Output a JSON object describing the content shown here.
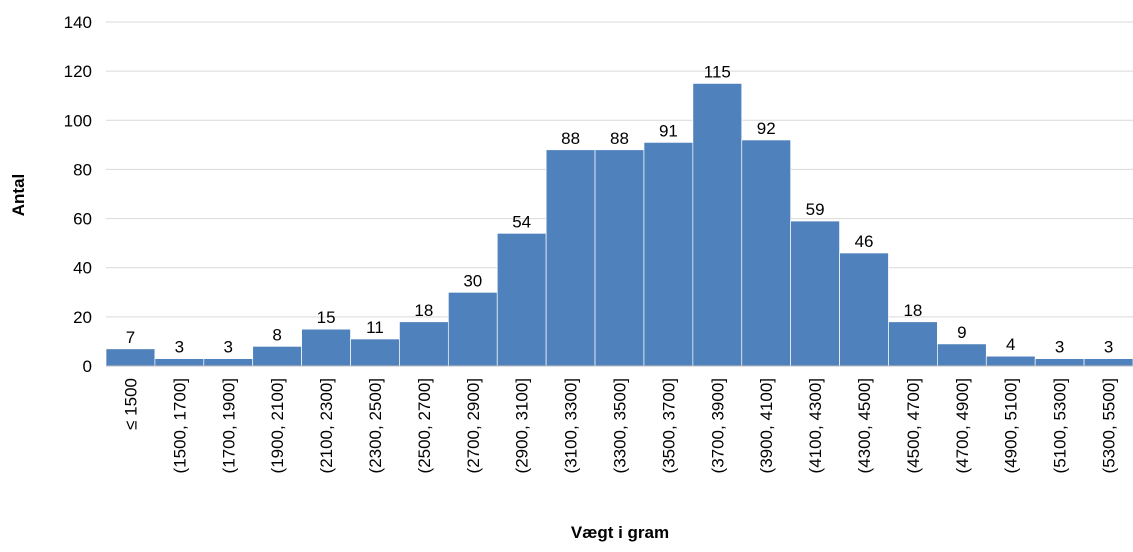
{
  "chart_data": {
    "type": "bar",
    "x_label": "Vægt i gram",
    "y_label": "Antal",
    "categories": [
      "≤ 1500",
      "(1500, 1700]",
      "(1700, 1900]",
      "(1900, 2100]",
      "(2100, 2300]",
      "(2300, 2500]",
      "(2500, 2700]",
      "(2700, 2900]",
      "(2900, 3100]",
      "(3100, 3300]",
      "(3300, 3500]",
      "(3500, 3700]",
      "(3700, 3900]",
      "(3900, 4100]",
      "(4100, 4300]",
      "(4300, 4500]",
      "(4500, 4700]",
      "(4700, 4900]",
      "(4900, 5100]",
      "(5100, 5300]",
      "(5300, 5500]"
    ],
    "values": [
      7,
      3,
      3,
      8,
      15,
      11,
      18,
      30,
      54,
      88,
      88,
      91,
      115,
      92,
      59,
      46,
      18,
      9,
      4,
      3,
      3
    ],
    "color": "#4f81bd",
    "ylim": [
      0,
      140
    ],
    "yticks": [
      0,
      20,
      40,
      60,
      80,
      100,
      120,
      140
    ],
    "grid": true
  }
}
